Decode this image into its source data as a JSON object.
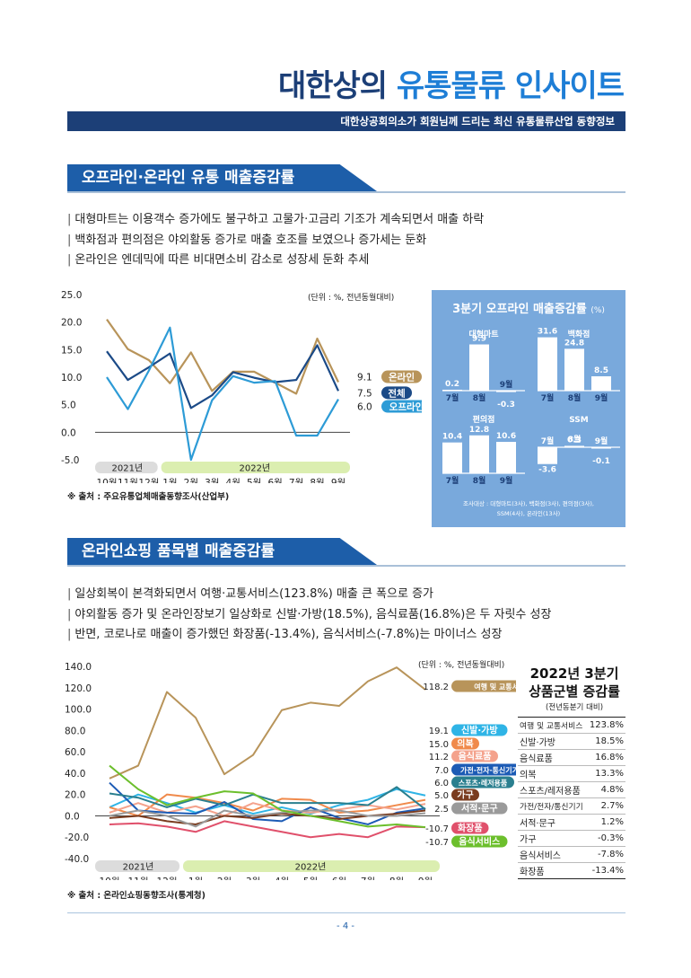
{
  "header": {
    "title_main": "대한상의 ",
    "title_accent": "유통물류 인사이트",
    "subtitle": "대한상공회의소가 회원님께 드리는 최신 유통물류산업 동향정보"
  },
  "section1": {
    "heading": "오프라인·온라인 유통 매출증감률",
    "bullets": [
      "대형마트는 이용객수 증가에도 불구하고 고물가·고금리 기조가 계속되면서 매출 하락",
      "백화점과 편의점은 야외활동 증가로 매출 호조를 보였으나 증가세는 둔화",
      "온라인은 엔데믹에 따른 비대면소비 감소로 성장세 둔화 추세"
    ],
    "unit": "(단위 : %, 전년동월대비)",
    "source": "※ 출처 : 주요유통업체매출동향조사(산업부)"
  },
  "section2": {
    "heading": "온라인쇼핑 품목별 매출증감률",
    "bullets": [
      "일상회복이 본격화되면서 여행·교통서비스(123.8%) 매출 큰 폭으로 증가",
      "야외활동 증가 및 온라인장보기 일상화로 신발·가방(18.5%), 음식료품(16.8%)은 두 자릿수 성장",
      "반면, 코로나로 매출이 증가했던 화장품(-13.4%), 음식서비스(-7.8%)는 마이너스 성장"
    ],
    "unit": "(단위 : %, 전년동월대비)",
    "source": "※ 출처 : 온라인쇼핑동향조사(통계청)"
  },
  "side_panel": {
    "title": "3분기 오프라인 매출증감률",
    "title_unit": "(%)",
    "note_line1": "조사대상 : 대형마트(3사), 백화점(3사), 편의점(3사),",
    "note_line2": "SSM(4사), 온라인(13사)"
  },
  "product_table": {
    "title_line1": "2022년 3분기",
    "title_line2": "상품군별 증감률",
    "subtitle": "(전년동분기 대비)",
    "rows": [
      {
        "name": "여행 및 교통서비스",
        "value": "123.8%"
      },
      {
        "name": "신발·가방",
        "value": "18.5%"
      },
      {
        "name": "음식료품",
        "value": "16.8%"
      },
      {
        "name": "의복",
        "value": "13.3%"
      },
      {
        "name": "스포츠/레저용품",
        "value": "4.8%"
      },
      {
        "name": "가전/전자/통신기기",
        "value": "2.7%"
      },
      {
        "name": "서적·문구",
        "value": "1.2%"
      },
      {
        "name": "가구",
        "value": "-0.3%"
      },
      {
        "name": "음식서비스",
        "value": "-7.8%"
      },
      {
        "name": "화장품",
        "value": "-13.4%"
      }
    ]
  },
  "footer": {
    "page": "- 4 -"
  },
  "chart_data": [
    {
      "type": "line",
      "categories": [
        "10월",
        "11월",
        "12월",
        "1월",
        "2월",
        "3월",
        "4월",
        "5월",
        "6월",
        "7월",
        "8월",
        "9월"
      ],
      "year_labels": [
        "2021년",
        "2022년"
      ],
      "ylim": [
        -5.0,
        25.0
      ],
      "yticks": [
        "25.0",
        "20.0",
        "15.0",
        "10.0",
        "5.0",
        "0.0",
        "-5.0"
      ],
      "series": [
        {
          "name": "온라인",
          "color": "#b8945a",
          "end_label": "9.1",
          "values": [
            20.5,
            15.1,
            13.1,
            8.9,
            14.5,
            7.5,
            11.0,
            11.0,
            9.0,
            7.0,
            17.0,
            9.1
          ]
        },
        {
          "name": "전체",
          "color": "#1b4a87",
          "end_label": "7.5",
          "values": [
            14.7,
            9.5,
            11.8,
            14.3,
            4.4,
            6.7,
            10.9,
            9.9,
            9.1,
            9.5,
            15.8,
            7.5
          ]
        },
        {
          "name": "오프라인",
          "color": "#2d9bd6",
          "end_label": "6.0",
          "values": [
            10.0,
            4.2,
            11.2,
            19.0,
            -5.0,
            5.8,
            10.2,
            9.0,
            9.3,
            -0.6,
            -0.6,
            6.0
          ]
        }
      ]
    },
    {
      "type": "bar",
      "title": "3분기 오프라인 매출증감률",
      "groups": [
        {
          "name": "대형마트",
          "categories": [
            "7월",
            "8월",
            "9월"
          ],
          "values": [
            0.2,
            9.9,
            -0.3
          ]
        },
        {
          "name": "백화점",
          "categories": [
            "7월",
            "8월",
            "9월"
          ],
          "values": [
            31.6,
            24.8,
            8.5
          ]
        },
        {
          "name": "편의점",
          "categories": [
            "7월",
            "8월",
            "9월"
          ],
          "values": [
            10.4,
            12.8,
            10.6
          ]
        },
        {
          "name": "SSM",
          "categories": [
            "7월",
            "8월",
            "9월"
          ],
          "values": [
            -3.6,
            0.3,
            -0.1
          ]
        }
      ]
    },
    {
      "type": "line",
      "categories": [
        "10월",
        "11월",
        "12월",
        "1월",
        "2월",
        "3월",
        "4월",
        "5월",
        "6월",
        "7월",
        "8월",
        "9월"
      ],
      "year_labels": [
        "2021년",
        "2022년"
      ],
      "ylim": [
        -40.0,
        140.0
      ],
      "yticks": [
        "140.0",
        "120.0",
        "100.0",
        "80.0",
        "60.0",
        "40.0",
        "20.0",
        "0.0",
        "-20.0",
        "-40.0"
      ],
      "series": [
        {
          "name": "여행 및 교통서비스",
          "color": "#b8945a",
          "end_label": "118.2",
          "values": [
            35,
            47,
            116,
            92,
            39,
            57,
            99,
            106,
            103,
            126,
            139,
            118.2
          ]
        },
        {
          "name": "신발·가방",
          "color": "#2fb4e6",
          "end_label": "19.1",
          "values": [
            8,
            20,
            12,
            3,
            10,
            2,
            8,
            2,
            10,
            15,
            25,
            19.1
          ]
        },
        {
          "name": "의복",
          "color": "#f08a4b",
          "end_label": "15.0",
          "values": [
            8,
            0,
            20,
            17,
            12,
            5,
            16,
            15,
            3,
            5,
            10,
            15.0
          ]
        },
        {
          "name": "음식료품",
          "color": "#f4a28c",
          "end_label": "11.2",
          "values": [
            3,
            12,
            3,
            9,
            0,
            12,
            5,
            3,
            6,
            10,
            6,
            11.2
          ]
        },
        {
          "name": "가전·전자·통신기기",
          "color": "#1c5bb5",
          "end_label": "7.0",
          "values": [
            31,
            5,
            3,
            2,
            13,
            -3,
            -5,
            8,
            -2,
            -8,
            3,
            7.0
          ]
        },
        {
          "name": "스포츠·레저용품",
          "color": "#2a7f8f",
          "end_label": "6.0",
          "values": [
            21,
            17,
            8,
            16,
            10,
            20,
            12,
            12,
            12,
            10,
            27,
            6.0
          ]
        },
        {
          "name": "가구",
          "color": "#7a3c1f",
          "end_label": "5.0",
          "values": [
            -2,
            0,
            -5,
            -8,
            0,
            -2,
            2,
            0,
            -3,
            0,
            2,
            5.0
          ]
        },
        {
          "name": "서적·문구",
          "color": "#9a9a9a",
          "end_label": "2.5",
          "values": [
            0,
            5,
            0,
            -10,
            5,
            0,
            3,
            5,
            5,
            0,
            0,
            2.5
          ]
        },
        {
          "name": "화장품",
          "color": "#e0506b",
          "end_label": "-10.7",
          "values": [
            -8,
            -7,
            -10,
            -15,
            -5,
            -10,
            -15,
            -20,
            -17,
            -20,
            -10,
            -10.7
          ]
        },
        {
          "name": "음식서비스",
          "color": "#6cbf2c",
          "end_label": "-10.7",
          "values": [
            47,
            25,
            10,
            17,
            23,
            21,
            5,
            0,
            -5,
            -10,
            -8,
            -10.7
          ]
        }
      ]
    }
  ]
}
